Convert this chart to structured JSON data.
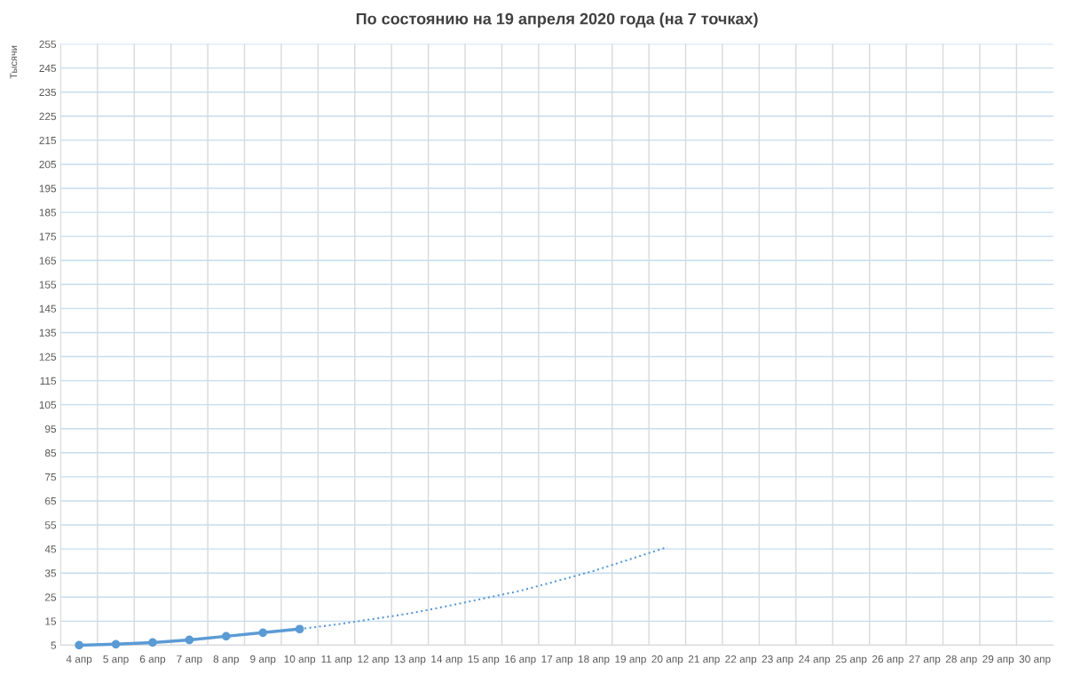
{
  "chart_data": {
    "type": "line",
    "title": "По состоянию на 19 апреля 2020 года (на 7 точках)",
    "ylabel": "Тысячи",
    "categories": [
      "4 апр",
      "5 апр",
      "6 апр",
      "7 апр",
      "8 апр",
      "9 апр",
      "10 апр",
      "11 апр",
      "12 апр",
      "13 апр",
      "14 апр",
      "15 апр",
      "16 апр",
      "17 апр",
      "18 апр",
      "19 апр",
      "20 апр",
      "21 апр",
      "22 апр",
      "23 апр",
      "24 апр",
      "25 апр",
      "26 апр",
      "27 апр",
      "28 апр",
      "29 апр",
      "30 апр"
    ],
    "series": [
      {
        "color": "#5b9bd5",
        "marker": "circle",
        "line_style": "solid",
        "values": [
          5.0,
          5.4,
          6.1,
          7.2,
          8.7,
          10.2,
          11.7,
          null,
          null,
          null,
          null,
          null,
          null,
          null,
          null,
          null,
          null,
          null,
          null,
          null,
          null,
          null,
          null,
          null,
          null,
          null,
          null
        ]
      },
      {
        "color": "#5b9bd5",
        "marker": "none",
        "line_style": "dotted",
        "values": [
          null,
          null,
          null,
          null,
          null,
          null,
          11.7,
          13.6,
          15.9,
          18.2,
          21.2,
          24.4,
          27.6,
          31.7,
          35.9,
          40.8,
          45.8,
          null,
          null,
          null,
          null,
          null,
          null,
          null,
          null,
          null,
          null
        ]
      }
    ],
    "ylim": [
      5,
      255
    ],
    "yticks": [
      5,
      15,
      25,
      35,
      45,
      55,
      65,
      75,
      85,
      95,
      105,
      115,
      125,
      135,
      145,
      155,
      165,
      175,
      185,
      195,
      205,
      215,
      225,
      235,
      245,
      255
    ],
    "grid": true
  }
}
